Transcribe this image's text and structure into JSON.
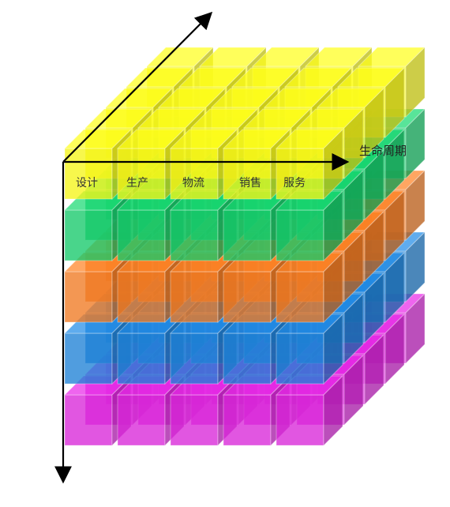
{
  "axis": {
    "lifecycle_label": "生命周期"
  },
  "columns": [
    {
      "label": "设计"
    },
    {
      "label": "生产"
    },
    {
      "label": "物流"
    },
    {
      "label": "销售"
    },
    {
      "label": "服务"
    }
  ],
  "layers": [
    {
      "color": "#f5f51a"
    },
    {
      "color": "#16c96a"
    },
    {
      "color": "#ef7a22"
    },
    {
      "color": "#1f82d6"
    },
    {
      "color": "#d826d8"
    }
  ],
  "grid": {
    "columns": 5,
    "depth": 5,
    "layers": 5
  }
}
